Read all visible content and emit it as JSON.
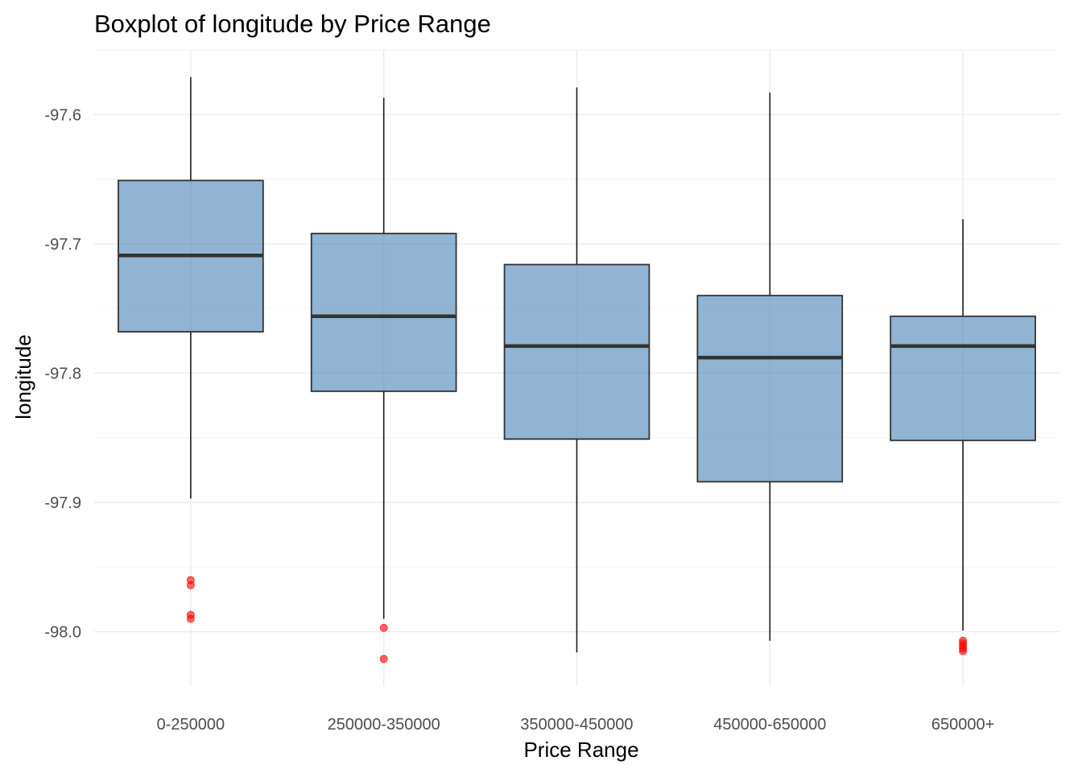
{
  "chart_data": {
    "type": "boxplot",
    "title": "Boxplot of longitude by Price Range",
    "xlabel": "Price Range",
    "ylabel": "longitude",
    "ylim": [
      -98.042,
      -97.55
    ],
    "yticks": [
      -97.6,
      -97.7,
      -97.8,
      -97.9,
      -98.0
    ],
    "ytick_labels": [
      "-97.6",
      "-97.7",
      "-97.8",
      "-97.9",
      "-98.0"
    ],
    "grid": true,
    "legend": "none",
    "box_color": "#4682B4",
    "outlier_color": "#FF0000",
    "categories": [
      "0-250000",
      "250000-350000",
      "350000-450000",
      "450000-650000",
      "650000+"
    ],
    "boxes": [
      {
        "category": "0-250000",
        "whisker_low": -97.897,
        "q1": -97.768,
        "median": -97.709,
        "q3": -97.651,
        "whisker_high": -97.571,
        "outliers": [
          -97.96,
          -97.964,
          -97.987,
          -97.99
        ]
      },
      {
        "category": "250000-350000",
        "whisker_low": -97.99,
        "q1": -97.814,
        "median": -97.756,
        "q3": -97.692,
        "whisker_high": -97.587,
        "outliers": [
          -97.997,
          -98.021
        ]
      },
      {
        "category": "350000-450000",
        "whisker_low": -98.016,
        "q1": -97.851,
        "median": -97.779,
        "q3": -97.716,
        "whisker_high": -97.579,
        "outliers": []
      },
      {
        "category": "450000-650000",
        "whisker_low": -98.007,
        "q1": -97.884,
        "median": -97.788,
        "q3": -97.74,
        "whisker_high": -97.583,
        "outliers": []
      },
      {
        "category": "650000+",
        "whisker_low": -97.999,
        "q1": -97.852,
        "median": -97.779,
        "q3": -97.756,
        "whisker_high": -97.681,
        "outliers": [
          -98.007,
          -98.009,
          -98.011,
          -98.013,
          -98.015
        ]
      }
    ]
  }
}
